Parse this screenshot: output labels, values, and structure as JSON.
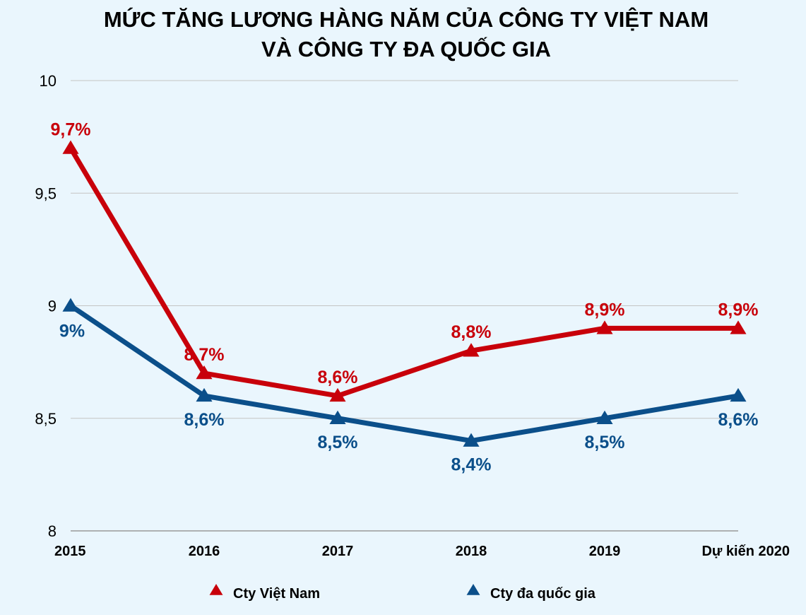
{
  "chart_data": {
    "type": "line",
    "title": "MỨC TĂNG LƯƠNG HÀNG NĂM CỦA CÔNG TY VIỆT NAM",
    "subtitle": "VÀ CÔNG TY ĐA QUỐC GIA",
    "categories": [
      "2015",
      "2016",
      "2017",
      "2018",
      "2019",
      "Dự kiến 2020"
    ],
    "ylim": [
      8,
      10
    ],
    "yticks": [
      "10",
      "9,5",
      "9",
      "8,5",
      "8"
    ],
    "grid": true,
    "legend_position": "bottom",
    "series": [
      {
        "name": "Cty Việt Nam",
        "color": "#c8000a",
        "values": [
          9.7,
          8.7,
          8.6,
          8.8,
          8.9,
          8.9
        ],
        "labels": [
          "9,7%",
          "8,7%",
          "8,6%",
          "8,8%",
          "8,9%",
          "8,9%"
        ]
      },
      {
        "name": "Cty đa quốc gia",
        "color": "#0b4f8a",
        "values": [
          9.0,
          8.6,
          8.5,
          8.4,
          8.5,
          8.6
        ],
        "labels": [
          "9%",
          "8,6%",
          "8,5%",
          "8,4%",
          "8,5%",
          "8,6%"
        ]
      }
    ]
  }
}
